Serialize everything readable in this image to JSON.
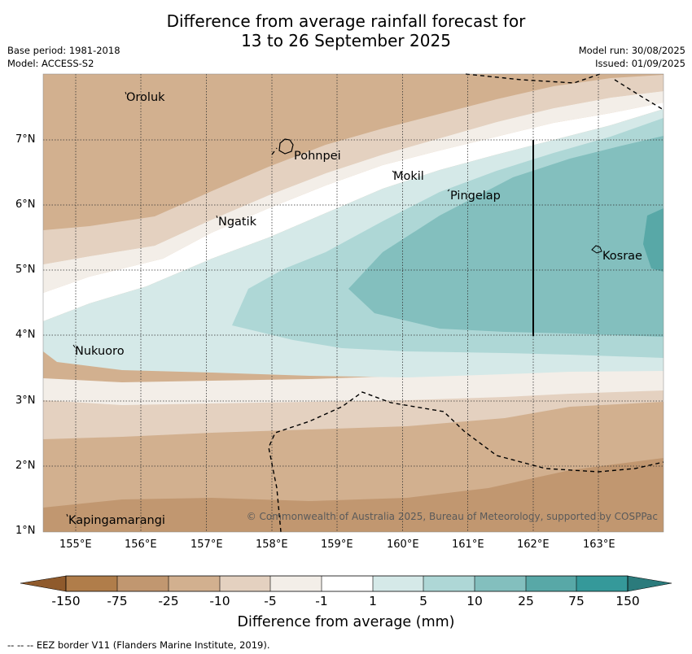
{
  "title": {
    "line1": "Difference from average rainfall forecast for",
    "line2": "13 to 26 September 2025"
  },
  "meta": {
    "base_period": "Base period: 1981-2018",
    "model": "Model: ACCESS-S2",
    "model_run": "Model run: 30/08/2025",
    "issued": "Issued: 01/09/2025"
  },
  "axes": {
    "x_ticks": [
      "155°E",
      "156°E",
      "157°E",
      "158°E",
      "159°E",
      "160°E",
      "161°E",
      "162°E",
      "163°E"
    ],
    "y_ticks": [
      "7°N",
      "6°N",
      "5°N",
      "4°N",
      "3°N",
      "2°N",
      "1°N"
    ]
  },
  "places": {
    "oroluk": "Oroluk",
    "pohnpei": "Pohnpei",
    "mokil": "Mokil",
    "pingelap": "Pingelap",
    "ngatik": "Ngatik",
    "kosrae": "Kosrae",
    "nukuoro": "Nukuoro",
    "kapingamarangi": "Kapingamarangi"
  },
  "credit": "© Commonwealth of Australia 2025, Bureau of Meteorology, supported by COSPPac",
  "colorbar": {
    "labels": [
      "-150",
      "-75",
      "-25",
      "-10",
      "-5",
      "-1",
      "1",
      "5",
      "10",
      "25",
      "75",
      "150"
    ],
    "colors": {
      "lt_-150": "#8f5a2c",
      "-150_-75": "#b07d4a",
      "-75_-25": "#c19770",
      "-25_-10": "#d2b08f",
      "-10_-5": "#e4d1c0",
      "-5_-1": "#f3eee8",
      "-1_1": "#ffffff",
      "1_5": "#d5e9e8",
      "5_10": "#aed7d6",
      "10_25": "#83bfbe",
      "25_75": "#58a8a7",
      "75_150": "#35999a",
      "gt_150": "#2b7b7c"
    },
    "title": "Difference from average (mm)"
  },
  "footnote": "--  --  -- EEZ border V11 (Flanders Marine Institute, 2019)."
}
